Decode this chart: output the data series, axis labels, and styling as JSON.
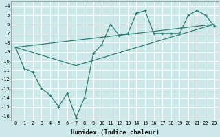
{
  "xlabel": "Humidex (Indice chaleur)",
  "background_color": "#cce8e8",
  "grid_color": "#ffffff",
  "line_color": "#2e7d72",
  "xlim": [
    -0.5,
    23.5
  ],
  "ylim": [
    -16.5,
    -3.5
  ],
  "yticks": [
    -4,
    -5,
    -6,
    -7,
    -8,
    -9,
    -10,
    -11,
    -12,
    -13,
    -14,
    -15,
    -16
  ],
  "xticks": [
    0,
    1,
    2,
    3,
    4,
    5,
    6,
    7,
    8,
    9,
    10,
    11,
    12,
    13,
    14,
    15,
    16,
    17,
    18,
    19,
    20,
    21,
    22,
    23
  ],
  "series1_x": [
    0,
    1,
    2,
    3,
    4,
    5,
    6,
    7,
    8,
    9,
    10,
    11,
    12,
    13,
    14,
    15,
    16,
    17,
    18,
    19,
    20,
    21,
    22,
    23
  ],
  "series1_y": [
    -8.5,
    -10.8,
    -11.2,
    -13.0,
    -13.7,
    -15.0,
    -13.5,
    -16.2,
    -14.0,
    -9.2,
    -8.2,
    -6.0,
    -7.2,
    -7.0,
    -4.8,
    -4.5,
    -7.0,
    -7.0,
    -7.0,
    -7.0,
    -5.0,
    -4.5,
    -5.0,
    -6.2
  ],
  "series2_x": [
    0,
    23
  ],
  "series2_y": [
    -8.5,
    -6.0
  ],
  "series3_x": [
    0,
    7,
    23
  ],
  "series3_y": [
    -8.5,
    -10.5,
    -6.0
  ],
  "tick_fontsize": 5.0,
  "xlabel_fontsize": 6.5
}
